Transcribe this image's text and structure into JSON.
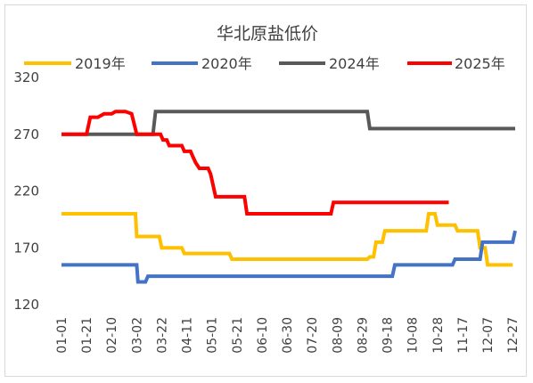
{
  "chart_data": {
    "type": "line",
    "title": "华北原盐低价",
    "xlabel": "",
    "ylabel": "",
    "ylim": [
      120,
      320
    ],
    "y_ticks": [
      120,
      170,
      220,
      270,
      320
    ],
    "x_ticks": [
      "01-01",
      "01-21",
      "02-10",
      "03-02",
      "03-22",
      "04-11",
      "05-01",
      "05-21",
      "06-10",
      "06-30",
      "07-20",
      "08-09",
      "08-29",
      "09-18",
      "10-08",
      "10-28",
      "11-17",
      "12-07",
      "12-27"
    ],
    "grid": false,
    "legend_position": "top",
    "series": [
      {
        "name": "2019年",
        "color": "#FFC000",
        "x": [
          "01-01",
          "03-01",
          "03-02",
          "03-20",
          "03-22",
          "04-07",
          "04-09",
          "05-15",
          "05-17",
          "09-02",
          "09-04",
          "09-07",
          "09-09",
          "09-14",
          "09-16",
          "10-19",
          "10-21",
          "10-26",
          "10-28",
          "11-11",
          "11-13",
          "11-29",
          "12-01",
          "12-05",
          "12-07",
          "12-27"
        ],
        "y": [
          200,
          200,
          180,
          180,
          170,
          170,
          165,
          165,
          160,
          160,
          162,
          162,
          175,
          175,
          185,
          185,
          200,
          200,
          190,
          190,
          185,
          185,
          170,
          170,
          155,
          155
        ]
      },
      {
        "name": "2020年",
        "color": "#4472C4",
        "x": [
          "01-01",
          "03-02",
          "03-03",
          "03-09",
          "03-11",
          "09-22",
          "09-24",
          "11-09",
          "11-11",
          "12-01",
          "12-03",
          "12-27",
          "12-29"
        ],
        "y": [
          155,
          155,
          140,
          140,
          145,
          145,
          155,
          155,
          160,
          160,
          175,
          175,
          185
        ]
      },
      {
        "name": "2024年",
        "color": "#595959",
        "x": [
          "01-01",
          "03-15",
          "03-17",
          "09-02",
          "09-04",
          "12-29"
        ],
        "y": [
          270,
          270,
          290,
          290,
          275,
          275
        ]
      },
      {
        "name": "2025年",
        "color": "#FF0000",
        "x": [
          "01-01",
          "01-21",
          "01-24",
          "01-30",
          "02-04",
          "02-10",
          "02-13",
          "02-21",
          "02-26",
          "03-02",
          "03-21",
          "03-23",
          "03-26",
          "03-28",
          "04-03",
          "04-07",
          "04-09",
          "04-14",
          "04-16",
          "04-18",
          "04-21",
          "04-28",
          "04-30",
          "05-02",
          "05-04",
          "05-07",
          "05-27",
          "05-29",
          "08-04",
          "08-06",
          "11-06"
        ],
        "y": [
          270,
          270,
          285,
          285,
          288,
          288,
          290,
          290,
          288,
          270,
          270,
          265,
          265,
          260,
          260,
          260,
          255,
          255,
          250,
          245,
          240,
          240,
          235,
          225,
          215,
          215,
          215,
          200,
          200,
          210,
          210
        ]
      }
    ]
  }
}
